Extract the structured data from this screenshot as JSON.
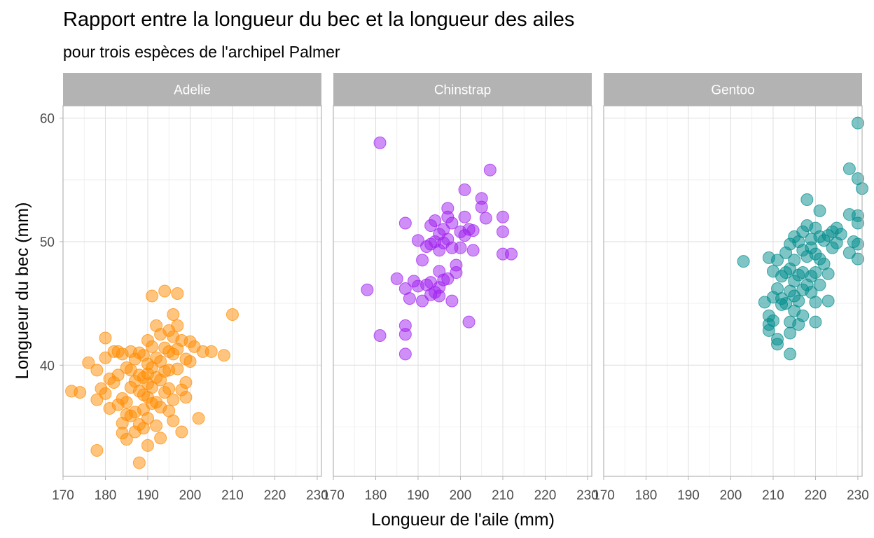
{
  "title": "Rapport entre la longueur du bec et la longueur des ailes",
  "subtitle": "pour trois espèces de l'archipel Palmer",
  "chart_data": {
    "type": "scatter",
    "xlabel": "Longueur de l'aile (mm)",
    "ylabel": "Longueur du bec (mm)",
    "xlim": [
      170,
      231
    ],
    "ylim": [
      31,
      61
    ],
    "x_ticks": [
      "170",
      "180",
      "190",
      "200",
      "210",
      "220",
      "230"
    ],
    "y_ticks": [
      "40",
      "50",
      "60"
    ],
    "grid": true,
    "facets": [
      {
        "name": "Adelie",
        "color": "#ff8c00",
        "points": [
          [
            172,
            37.9
          ],
          [
            174,
            37.8
          ],
          [
            176,
            40.2
          ],
          [
            178,
            37.2
          ],
          [
            178,
            39.6
          ],
          [
            178,
            33.1
          ],
          [
            179,
            38.1
          ],
          [
            180,
            42.2
          ],
          [
            180,
            40.6
          ],
          [
            180,
            37.7
          ],
          [
            181,
            38.9
          ],
          [
            181,
            36.5
          ],
          [
            182,
            41.1
          ],
          [
            182,
            38.6
          ],
          [
            183,
            41.1
          ],
          [
            183,
            39.2
          ],
          [
            183,
            36.8
          ],
          [
            184,
            40.9
          ],
          [
            184,
            37.3
          ],
          [
            184,
            35.3
          ],
          [
            184,
            34.5
          ],
          [
            185,
            39.8
          ],
          [
            185,
            37.0
          ],
          [
            185,
            36.0
          ],
          [
            185,
            34.0
          ],
          [
            186,
            41.1
          ],
          [
            186,
            39.6
          ],
          [
            186,
            38.2
          ],
          [
            186,
            35.9
          ],
          [
            187,
            40.5
          ],
          [
            187,
            38.7
          ],
          [
            187,
            36.2
          ],
          [
            187,
            34.6
          ],
          [
            188,
            41.0
          ],
          [
            188,
            39.2
          ],
          [
            188,
            37.9
          ],
          [
            188,
            35.2
          ],
          [
            188,
            32.1
          ],
          [
            189,
            40.8
          ],
          [
            189,
            39.0
          ],
          [
            189,
            37.6
          ],
          [
            189,
            36.4
          ],
          [
            189,
            34.9
          ],
          [
            190,
            42.0
          ],
          [
            190,
            40.1
          ],
          [
            190,
            39.3
          ],
          [
            190,
            38.5
          ],
          [
            190,
            37.4
          ],
          [
            190,
            35.7
          ],
          [
            190,
            33.5
          ],
          [
            191,
            41.5
          ],
          [
            191,
            39.8
          ],
          [
            191,
            38.2
          ],
          [
            191,
            36.9
          ],
          [
            191,
            45.6
          ],
          [
            192,
            43.2
          ],
          [
            192,
            40.6
          ],
          [
            192,
            39.0
          ],
          [
            192,
            37.0
          ],
          [
            192,
            35.1
          ],
          [
            193,
            42.5
          ],
          [
            193,
            40.3
          ],
          [
            193,
            38.8
          ],
          [
            193,
            36.6
          ],
          [
            193,
            34.1
          ],
          [
            194,
            46.0
          ],
          [
            194,
            41.4
          ],
          [
            194,
            39.5
          ],
          [
            194,
            37.8
          ],
          [
            195,
            42.8
          ],
          [
            195,
            41.1
          ],
          [
            195,
            39.6
          ],
          [
            195,
            38.1
          ],
          [
            195,
            36.3
          ],
          [
            196,
            44.1
          ],
          [
            196,
            42.3
          ],
          [
            196,
            40.9
          ],
          [
            196,
            37.2
          ],
          [
            196,
            35.5
          ],
          [
            197,
            45.8
          ],
          [
            197,
            43.2
          ],
          [
            197,
            41.3
          ],
          [
            197,
            39.7
          ],
          [
            198,
            38.0
          ],
          [
            198,
            34.6
          ],
          [
            198,
            42.0
          ],
          [
            199,
            38.6
          ],
          [
            199,
            40.5
          ],
          [
            199,
            37.4
          ],
          [
            200,
            41.9
          ],
          [
            200,
            40.3
          ],
          [
            201,
            41.5
          ],
          [
            202,
            35.7
          ],
          [
            203,
            41.1
          ],
          [
            205,
            41.1
          ],
          [
            208,
            40.8
          ],
          [
            210,
            44.1
          ]
        ]
      },
      {
        "name": "Chinstrap",
        "color": "#a020f0",
        "points": [
          [
            178,
            46.1
          ],
          [
            181,
            58.0
          ],
          [
            181,
            42.4
          ],
          [
            185,
            47.0
          ],
          [
            187,
            51.5
          ],
          [
            187,
            46.2
          ],
          [
            187,
            43.2
          ],
          [
            187,
            42.5
          ],
          [
            187,
            40.9
          ],
          [
            188,
            45.4
          ],
          [
            189,
            46.8
          ],
          [
            190,
            50.1
          ],
          [
            190,
            46.4
          ],
          [
            191,
            48.5
          ],
          [
            191,
            45.2
          ],
          [
            192,
            49.6
          ],
          [
            192,
            46.5
          ],
          [
            193,
            51.3
          ],
          [
            193,
            49.8
          ],
          [
            193,
            46.7
          ],
          [
            193,
            45.7
          ],
          [
            194,
            51.7
          ],
          [
            194,
            50.0
          ],
          [
            194,
            45.9
          ],
          [
            195,
            50.6
          ],
          [
            195,
            49.3
          ],
          [
            195,
            47.6
          ],
          [
            195,
            46.3
          ],
          [
            195,
            45.6
          ],
          [
            196,
            51.0
          ],
          [
            196,
            49.9
          ],
          [
            196,
            46.9
          ],
          [
            197,
            52.7
          ],
          [
            197,
            52.0
          ],
          [
            197,
            50.2
          ],
          [
            197,
            47.0
          ],
          [
            198,
            51.5
          ],
          [
            198,
            49.5
          ],
          [
            198,
            45.2
          ],
          [
            199,
            48.1
          ],
          [
            199,
            47.5
          ],
          [
            200,
            50.8
          ],
          [
            200,
            49.5
          ],
          [
            201,
            54.2
          ],
          [
            201,
            52.0
          ],
          [
            201,
            50.5
          ],
          [
            202,
            51.0
          ],
          [
            202,
            43.5
          ],
          [
            203,
            50.9
          ],
          [
            203,
            49.3
          ],
          [
            205,
            53.5
          ],
          [
            205,
            52.8
          ],
          [
            206,
            51.9
          ],
          [
            207,
            55.8
          ],
          [
            210,
            52.0
          ],
          [
            210,
            50.8
          ],
          [
            210,
            49.0
          ],
          [
            212,
            49.0
          ]
        ]
      },
      {
        "name": "Gentoo",
        "color": "#008b8b",
        "points": [
          [
            203,
            48.4
          ],
          [
            208,
            45.1
          ],
          [
            209,
            48.7
          ],
          [
            209,
            44.0
          ],
          [
            209,
            43.3
          ],
          [
            209,
            42.8
          ],
          [
            210,
            47.6
          ],
          [
            210,
            45.5
          ],
          [
            210,
            43.6
          ],
          [
            211,
            48.5
          ],
          [
            211,
            46.2
          ],
          [
            211,
            42.1
          ],
          [
            211,
            41.7
          ],
          [
            212,
            47.2
          ],
          [
            212,
            45.4
          ],
          [
            212,
            44.9
          ],
          [
            213,
            49.1
          ],
          [
            213,
            47.5
          ],
          [
            213,
            45.0
          ],
          [
            214,
            49.8
          ],
          [
            214,
            47.8
          ],
          [
            214,
            46.0
          ],
          [
            214,
            43.5
          ],
          [
            214,
            42.6
          ],
          [
            214,
            40.9
          ],
          [
            215,
            50.4
          ],
          [
            215,
            48.5
          ],
          [
            215,
            46.8
          ],
          [
            215,
            45.6
          ],
          [
            215,
            44.4
          ],
          [
            216,
            50.0
          ],
          [
            216,
            47.3
          ],
          [
            216,
            45.2
          ],
          [
            216,
            43.3
          ],
          [
            217,
            50.8
          ],
          [
            217,
            49.3
          ],
          [
            217,
            47.5
          ],
          [
            217,
            46.1
          ],
          [
            217,
            44.0
          ],
          [
            218,
            53.4
          ],
          [
            218,
            51.3
          ],
          [
            218,
            48.8
          ],
          [
            218,
            46.5
          ],
          [
            219,
            50.2
          ],
          [
            219,
            49.5
          ],
          [
            219,
            47.2
          ],
          [
            219,
            45.9
          ],
          [
            220,
            51.1
          ],
          [
            220,
            49.0
          ],
          [
            220,
            47.5
          ],
          [
            220,
            45.1
          ],
          [
            220,
            43.5
          ],
          [
            221,
            52.5
          ],
          [
            221,
            50.4
          ],
          [
            221,
            48.6
          ],
          [
            221,
            46.5
          ],
          [
            222,
            50.1
          ],
          [
            222,
            48.2
          ],
          [
            223,
            50.5
          ],
          [
            223,
            47.4
          ],
          [
            223,
            45.2
          ],
          [
            224,
            50.8
          ],
          [
            224,
            49.5
          ],
          [
            225,
            51.1
          ],
          [
            225,
            49.9
          ],
          [
            226,
            50.6
          ],
          [
            228,
            55.9
          ],
          [
            228,
            52.2
          ],
          [
            228,
            49.1
          ],
          [
            229,
            50.0
          ],
          [
            230,
            59.6
          ],
          [
            230,
            55.1
          ],
          [
            230,
            52.1
          ],
          [
            230,
            51.5
          ],
          [
            230,
            49.8
          ],
          [
            230,
            48.6
          ],
          [
            231,
            54.3
          ]
        ]
      }
    ]
  }
}
